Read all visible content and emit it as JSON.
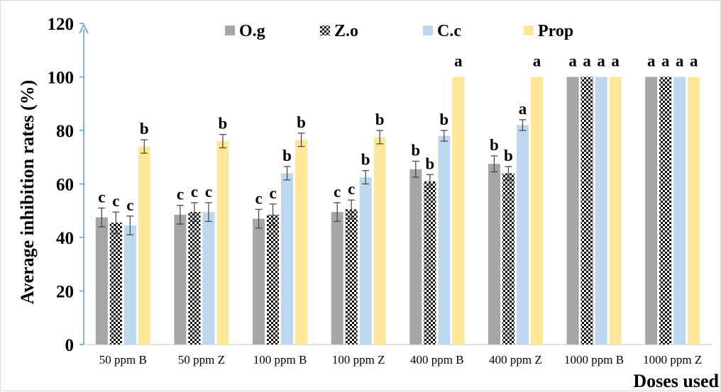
{
  "chart_data": {
    "type": "bar",
    "title": "",
    "xlabel": "Doses used",
    "ylabel": "Average inhibition rates (%)",
    "ylim": [
      0,
      120
    ],
    "yticks": [
      0,
      20,
      40,
      60,
      80,
      100,
      120
    ],
    "grid": false,
    "legend_position": "top",
    "categories": [
      "50 ppm B",
      "50 ppm Z",
      "100 ppm B",
      "100 ppm Z",
      "400 ppm B",
      "400 ppm Z",
      "1000 ppm B",
      "1000 ppm Z"
    ],
    "series": [
      {
        "name": "O.g",
        "color": "#a6a6a6",
        "pattern": "solid",
        "values": [
          47.5,
          48.5,
          47,
          49.5,
          65.5,
          67.5,
          100,
          100
        ],
        "errors": [
          3.5,
          3.5,
          3.5,
          3.5,
          3,
          3,
          0,
          0
        ],
        "labels": [
          "c",
          "c",
          "c",
          "c",
          "b",
          "b",
          "a",
          "a"
        ]
      },
      {
        "name": "Z.o",
        "color": "#000000",
        "pattern": "checker",
        "values": [
          45.5,
          49.5,
          48.5,
          50.5,
          61,
          64,
          100,
          100
        ],
        "errors": [
          4,
          3.5,
          4,
          3.5,
          2.5,
          2.5,
          0,
          0
        ],
        "labels": [
          "c",
          "c",
          "c",
          "c",
          "b",
          "b",
          "a",
          "a"
        ]
      },
      {
        "name": "C.c",
        "color": "#bdd7ee",
        "pattern": "solid",
        "values": [
          44.5,
          49.5,
          64,
          62.5,
          78,
          82,
          100,
          100
        ],
        "errors": [
          3.5,
          3.5,
          2.5,
          2.5,
          2,
          2,
          0,
          0
        ],
        "labels": [
          "c",
          "c",
          "b",
          "b",
          "b",
          "a",
          "a",
          "a"
        ]
      },
      {
        "name": "Prop",
        "color": "#ffe699",
        "pattern": "solid",
        "values": [
          74,
          76,
          76.5,
          77.5,
          100,
          100,
          100,
          100
        ],
        "errors": [
          2.5,
          2.5,
          2.5,
          2.5,
          0,
          0,
          0,
          0
        ],
        "labels": [
          "b",
          "b",
          "b",
          "b",
          "a",
          "a",
          "a",
          "a"
        ]
      }
    ]
  }
}
